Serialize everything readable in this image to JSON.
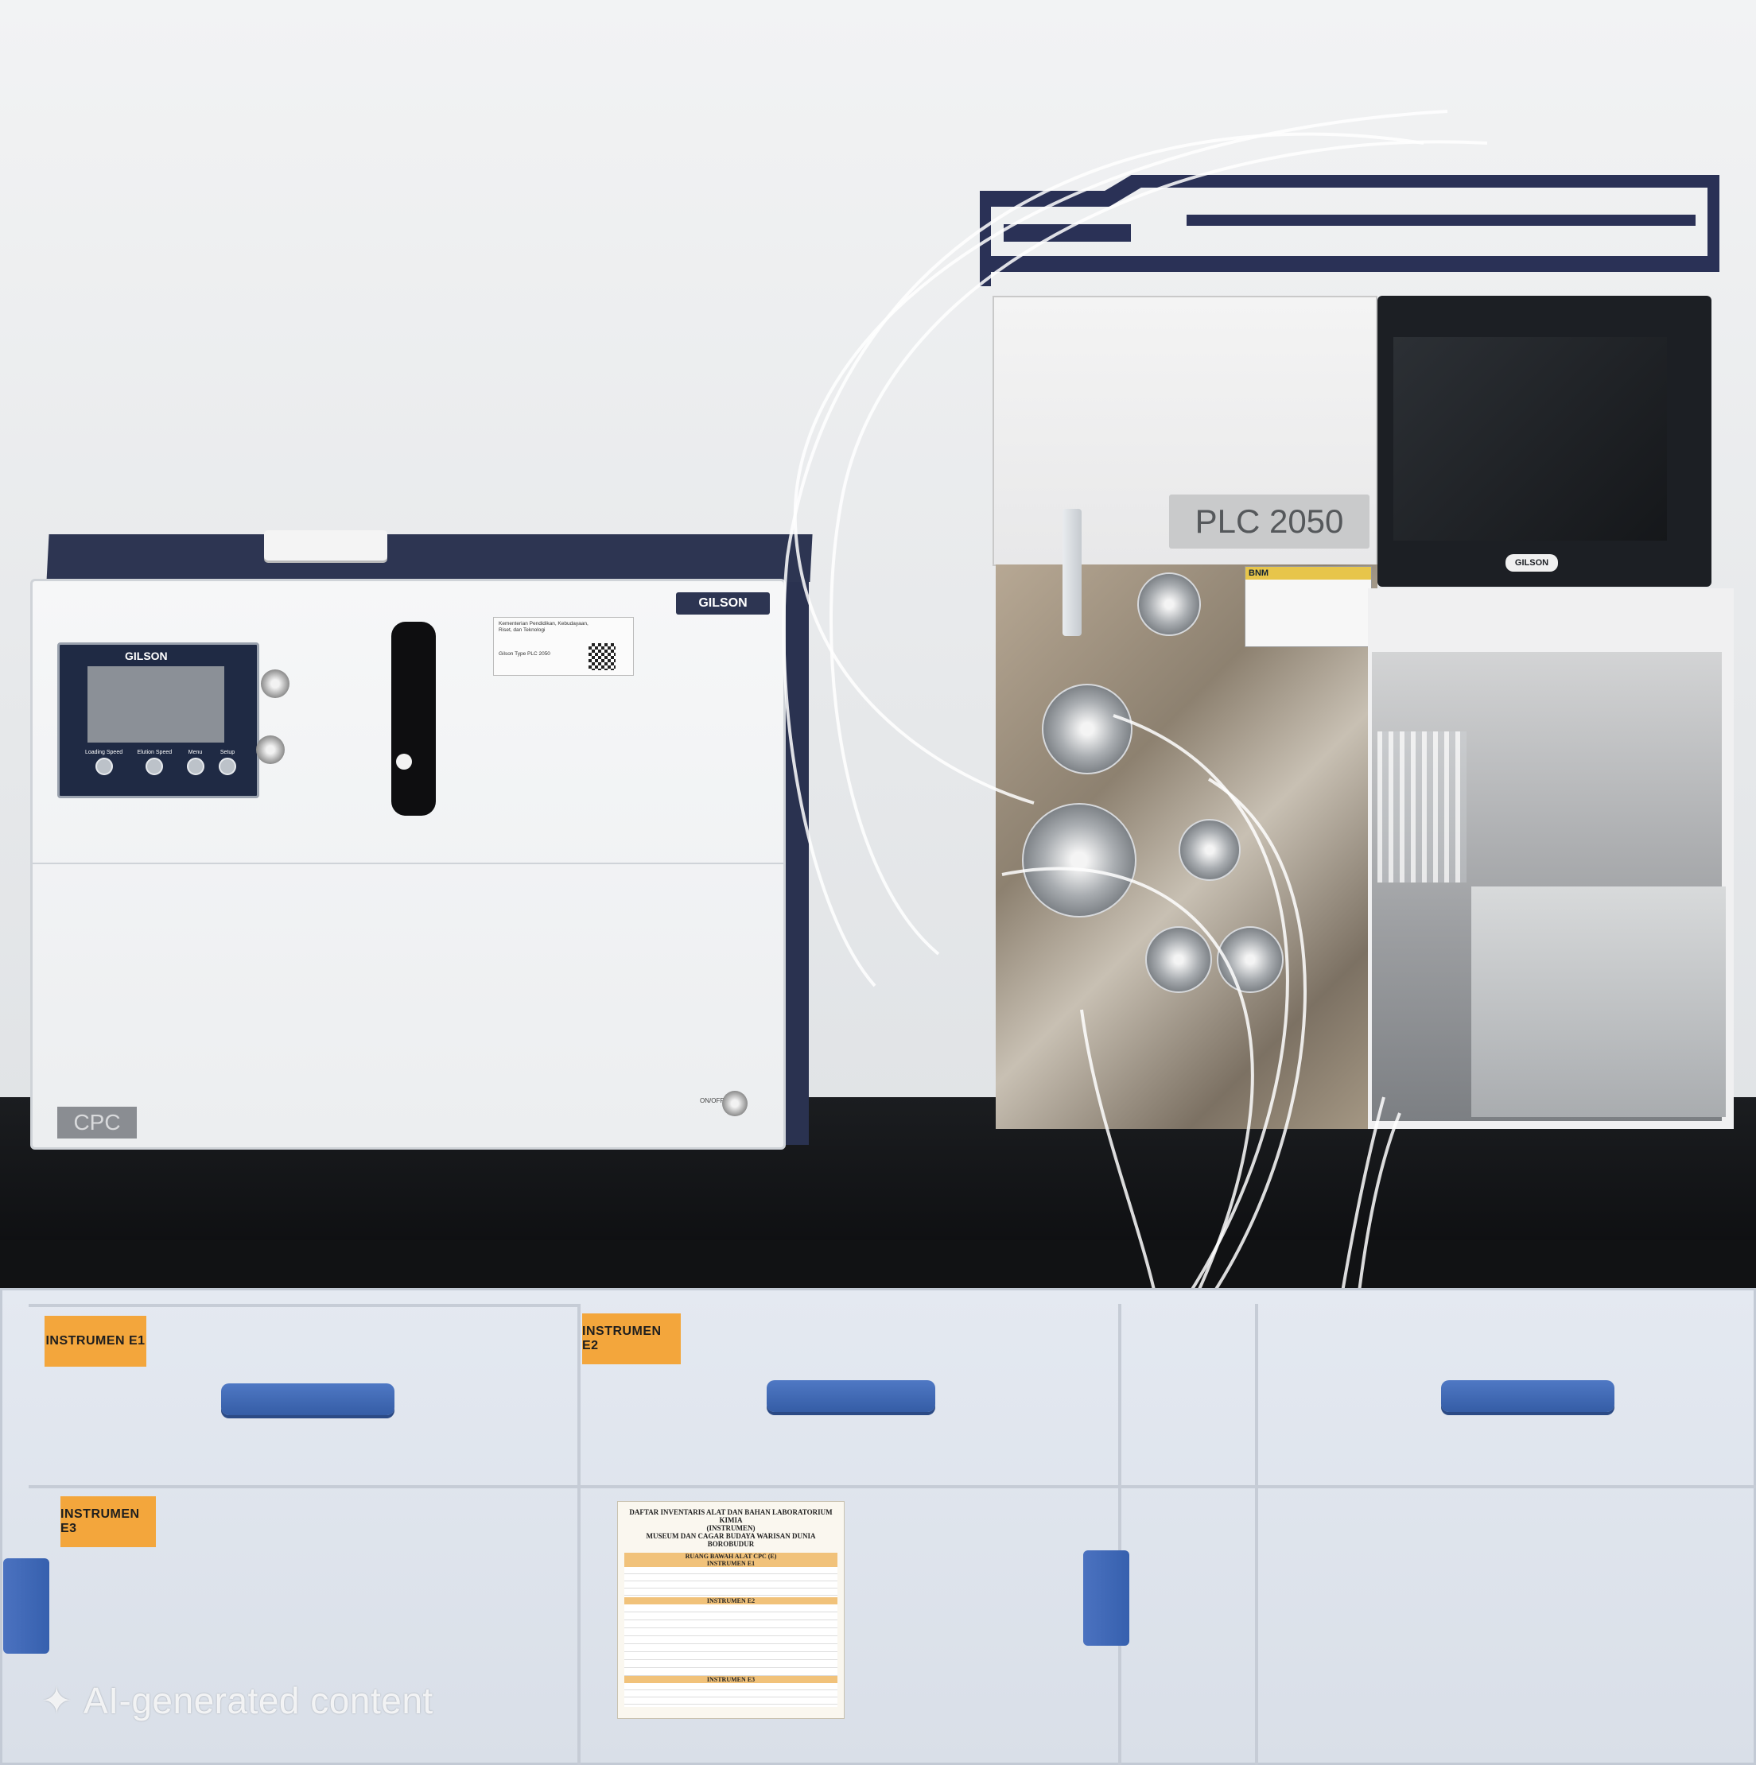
{
  "cpc_unit": {
    "brand_badge": "GILSON",
    "display_brand": "GILSON",
    "buttons": [
      "Loading Speed",
      "Elution Speed",
      "Menu",
      "Setup"
    ],
    "label_sticker": [
      "Kementerian Pendidikan, Kebudayaan,",
      "Riset, dan Teknologi",
      "Gilson Type PLC 2050"
    ],
    "model_badge": "CPC",
    "switch_label": "ON/OFF"
  },
  "plc_unit": {
    "model_badge": "PLC 2050",
    "monitor_brand": "GILSON",
    "sticker": "BNM"
  },
  "drawer_tags": [
    "INSTRUMEN E1",
    "INSTRUMEN E2",
    "INSTRUMEN E3"
  ],
  "inventory_sheet": {
    "title": "DAFTAR INVENTARIS ALAT DAN BAHAN LABORATORIUM KIMIA",
    "subtitle": "(INSTRUMEN)",
    "org": "MUSEUM DAN CAGAR BUDAYA WARISAN DUNIA BOROBUDUR",
    "room": "RUANG BAWAH ALAT CPC (E)",
    "sections": [
      "INSTRUMEN E1",
      "INSTRUMEN E2",
      "INSTRUMEN E3"
    ]
  },
  "watermark": "AI-generated content",
  "colors": {
    "navy": "#2d3552",
    "drawer_handle": "#4f78c4",
    "tag_orange": "#f3a63c",
    "bench": "#111214"
  }
}
